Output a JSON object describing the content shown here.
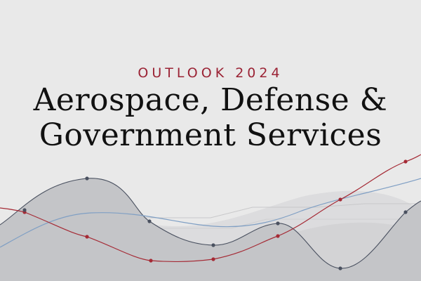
{
  "banner": {
    "kicker": "OUTLOOK 2024",
    "title_line1": "Aerospace, Defense &",
    "title_line2": "Government Services"
  },
  "colors": {
    "background": "#e9e9e9",
    "kicker": "#9b2335",
    "title": "#111111",
    "mountain_dark": "#c3c4c7",
    "mountain_light": "#d9d9db",
    "red_line": "#a52a35",
    "blue_line": "#7f9fc4",
    "dark_line": "#4a5160"
  }
}
